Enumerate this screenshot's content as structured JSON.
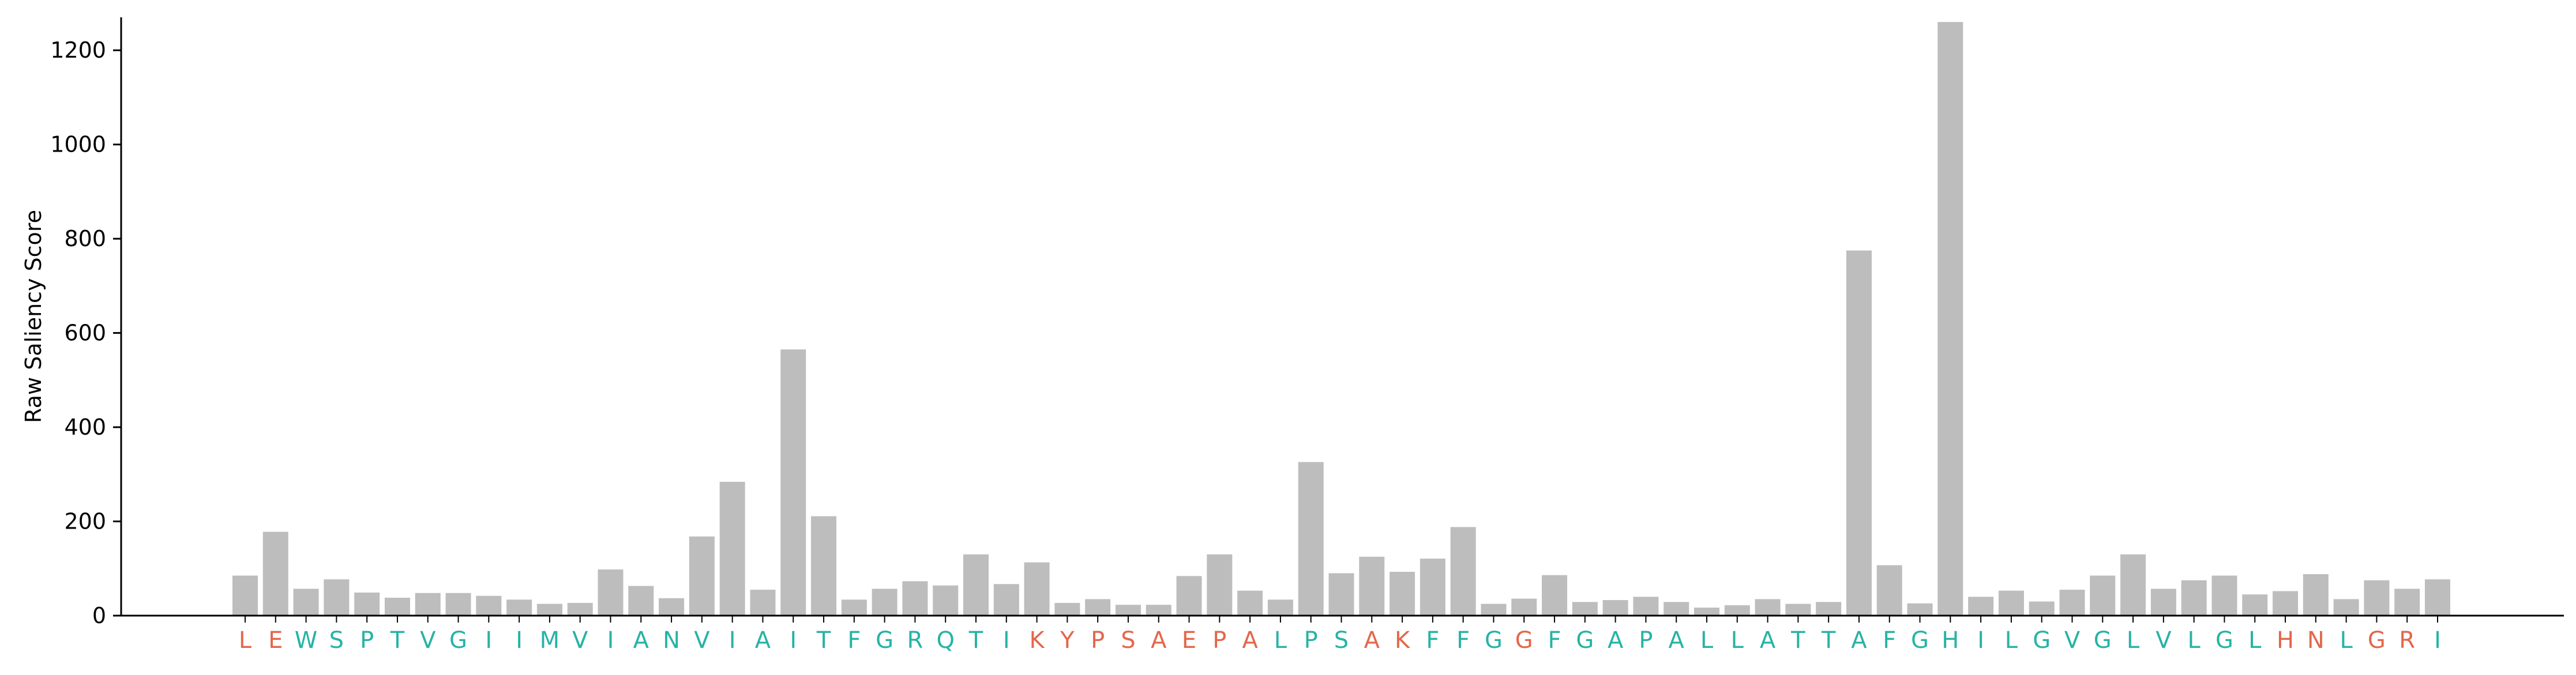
{
  "chart_data": {
    "type": "bar",
    "title": "",
    "xlabel": "",
    "ylabel": "Raw Saliency Score",
    "ylim": [
      0,
      1270
    ],
    "yticks": [
      0,
      200,
      400,
      600,
      800,
      1000,
      1200
    ],
    "grid": false,
    "legend": "none",
    "colors": {
      "bar": "#bdbdbd",
      "label_teal": "#26b3a6",
      "label_orange": "#e3674b",
      "axis": "#000000"
    },
    "categories": [
      "L",
      "E",
      "W",
      "S",
      "P",
      "T",
      "V",
      "G",
      "I",
      "I",
      "M",
      "V",
      "I",
      "A",
      "N",
      "V",
      "I",
      "A",
      "I",
      "T",
      "F",
      "G",
      "R",
      "Q",
      "T",
      "I",
      "K",
      "Y",
      "P",
      "S",
      "A",
      "E",
      "P",
      "A",
      "L",
      "P",
      "S",
      "A",
      "K",
      "F",
      "F",
      "G",
      "G",
      "F",
      "G",
      "A",
      "P",
      "A",
      "L",
      "L",
      "A",
      "T",
      "T",
      "A",
      "F",
      "G",
      "H",
      "I",
      "L",
      "G",
      "V",
      "G",
      "L",
      "V",
      "L",
      "G",
      "L",
      "H",
      "N",
      "L",
      "G",
      "R",
      "I"
    ],
    "label_colors": [
      "orange",
      "orange",
      "teal",
      "teal",
      "teal",
      "teal",
      "teal",
      "teal",
      "teal",
      "teal",
      "teal",
      "teal",
      "teal",
      "teal",
      "teal",
      "teal",
      "teal",
      "teal",
      "teal",
      "teal",
      "teal",
      "teal",
      "teal",
      "teal",
      "teal",
      "teal",
      "orange",
      "orange",
      "orange",
      "orange",
      "orange",
      "orange",
      "orange",
      "orange",
      "teal",
      "teal",
      "teal",
      "orange",
      "orange",
      "teal",
      "teal",
      "teal",
      "orange",
      "teal",
      "teal",
      "teal",
      "teal",
      "teal",
      "teal",
      "teal",
      "teal",
      "teal",
      "teal",
      "teal",
      "teal",
      "teal",
      "teal",
      "teal",
      "teal",
      "teal",
      "teal",
      "teal",
      "teal",
      "teal",
      "teal",
      "teal",
      "teal",
      "orange",
      "orange",
      "teal",
      "orange",
      "orange",
      "teal"
    ],
    "values": [
      85,
      178,
      57,
      77,
      49,
      38,
      48,
      48,
      42,
      34,
      25,
      27,
      98,
      63,
      37,
      168,
      284,
      55,
      565,
      211,
      34,
      57,
      73,
      64,
      130,
      67,
      113,
      27,
      35,
      23,
      23,
      84,
      130,
      53,
      34,
      326,
      90,
      125,
      93,
      121,
      188,
      25,
      36,
      86,
      29,
      33,
      40,
      29,
      17,
      22,
      35,
      25,
      29,
      775,
      107,
      26,
      1260,
      40,
      53,
      30,
      55,
      85,
      130,
      57,
      75,
      85,
      45,
      52,
      88,
      35,
      75,
      57,
      77
    ]
  }
}
